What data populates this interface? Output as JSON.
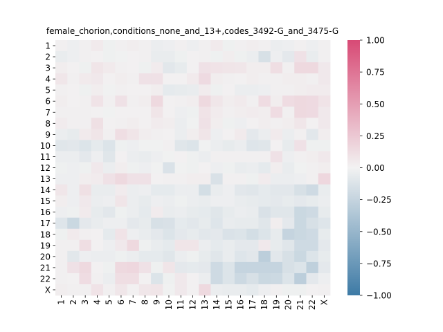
{
  "chart_data": {
    "type": "heatmap",
    "title": "female_chorion,conditions_none_and_13+,codes_3492-G_and_3475-G",
    "xlabel": "",
    "ylabel": "",
    "rows": [
      "1",
      "2",
      "3",
      "4",
      "5",
      "6",
      "7",
      "8",
      "9",
      "10",
      "11",
      "12",
      "13",
      "14",
      "15",
      "16",
      "17",
      "18",
      "19",
      "20",
      "21",
      "22",
      "X"
    ],
    "columns": [
      "1",
      "2",
      "3",
      "4",
      "5",
      "6",
      "7",
      "8",
      "9",
      "10",
      "11",
      "12",
      "13",
      "14",
      "15",
      "16",
      "17",
      "18",
      "19",
      "20",
      "21",
      "22",
      "X"
    ],
    "colorbar": {
      "vmin": -1.0,
      "vmax": 1.0,
      "ticks": [
        "1.00",
        "0.75",
        "0.50",
        "0.25",
        "0.00",
        "−0.25",
        "−0.50",
        "−0.75",
        "−1.00"
      ],
      "colors": {
        "negative": "#3d7aa5",
        "zero": "#f2f2f2",
        "positive": "#d84a75"
      }
    },
    "values": [
      [
        0.02,
        -0.03,
        0.02,
        0.05,
        -0.02,
        0.02,
        0.03,
        0.02,
        -0.04,
        -0.03,
        0.02,
        -0.03,
        0.02,
        0.05,
        -0.02,
        0.02,
        0.03,
        0.02,
        -0.04,
        -0.03,
        0.02,
        -0.03,
        0.02
      ],
      [
        -0.05,
        -0.03,
        0.02,
        0.01,
        -0.02,
        -0.01,
        0.01,
        0.02,
        -0.05,
        -0.05,
        -0.02,
        0.01,
        0.02,
        -0.02,
        0.03,
        -0.02,
        -0.04,
        -0.15,
        -0.03,
        -0.08,
        0.1,
        -0.05,
        0.02
      ],
      [
        0.03,
        0.01,
        -0.02,
        0.08,
        0.05,
        0.02,
        0.01,
        -0.02,
        0.04,
        -0.09,
        -0.06,
        0.01,
        0.1,
        0.09,
        0.08,
        0.07,
        0.03,
        0.03,
        0.12,
        0.02,
        0.15,
        0.15,
        0.06
      ],
      [
        0.07,
        0.02,
        0.05,
        0.06,
        0.01,
        0.03,
        0.02,
        0.1,
        0.1,
        0.01,
        0.01,
        0.05,
        0.14,
        0.03,
        0.02,
        0.01,
        0.03,
        0.02,
        0.02,
        0.03,
        0.03,
        0.02,
        0.06
      ],
      [
        0.02,
        0.01,
        -0.02,
        0.03,
        -0.01,
        0.02,
        0.01,
        0.01,
        0.03,
        -0.07,
        -0.06,
        -0.05,
        0.04,
        -0.02,
        0.01,
        -0.04,
        -0.04,
        -0.03,
        0.02,
        0.02,
        0.03,
        0.04,
        0.04
      ],
      [
        0.03,
        0.01,
        0.02,
        0.09,
        0.02,
        0.1,
        0.02,
        0.03,
        0.15,
        0.01,
        0.02,
        0.03,
        0.15,
        0.07,
        0.03,
        0.05,
        0.02,
        0.13,
        0.03,
        0.13,
        0.15,
        0.14,
        0.09
      ],
      [
        0.02,
        0.02,
        0.02,
        0.01,
        -0.01,
        0.01,
        0.01,
        0.01,
        0.08,
        0.01,
        -0.03,
        -0.02,
        0.09,
        0.04,
        0.02,
        0.03,
        0.04,
        0.03,
        0.13,
        0.02,
        0.15,
        0.14,
        0.06
      ],
      [
        0.04,
        0.02,
        0.02,
        0.11,
        0.01,
        0.02,
        0.03,
        0.01,
        0.04,
        0.03,
        -0.04,
        -0.01,
        0.1,
        0.03,
        -0.02,
        -0.03,
        0.01,
        0.03,
        0.02,
        0.03,
        0.07,
        0.01,
        0.06
      ],
      [
        -0.04,
        -0.06,
        0.05,
        0.08,
        0.02,
        0.12,
        0.08,
        0.03,
        0.02,
        0.01,
        -0.04,
        0.03,
        0.08,
        -0.03,
        0.01,
        0.05,
        -0.08,
        -0.04,
        0.05,
        -0.04,
        0.02,
        -0.09,
        0.03
      ],
      [
        -0.1,
        -0.09,
        -0.12,
        -0.07,
        -0.12,
        -0.02,
        -0.03,
        -0.01,
        -0.01,
        0.02,
        -0.1,
        -0.12,
        -0.01,
        -0.04,
        -0.06,
        -0.04,
        -0.11,
        -0.1,
        0.01,
        -0.06,
        0.1,
        -0.02,
        -0.02
      ],
      [
        -0.04,
        -0.04,
        -0.08,
        -0.03,
        -0.1,
        0.01,
        -0.04,
        -0.05,
        -0.03,
        -0.01,
        0.01,
        -0.02,
        -0.04,
        0.02,
        0.02,
        0.02,
        0.02,
        0.02,
        0.1,
        -0.03,
        0.02,
        0.03,
        0.06
      ],
      [
        -0.02,
        -0.03,
        -0.02,
        0.06,
        -0.04,
        0.03,
        -0.02,
        -0.03,
        -0.01,
        -0.13,
        -0.01,
        -0.02,
        0.01,
        -0.03,
        -0.02,
        -0.05,
        -0.04,
        -0.07,
        0.03,
        -0.05,
        -0.01,
        0.02,
        0.03
      ],
      [
        -0.03,
        -0.03,
        0.03,
        0.04,
        0.1,
        0.15,
        0.1,
        0.1,
        0.01,
        0.02,
        0.02,
        0.03,
        0.03,
        -0.14,
        0.02,
        0.02,
        -0.02,
        0.04,
        -0.04,
        -0.04,
        -0.03,
        0.02,
        0.16
      ],
      [
        0.07,
        -0.03,
        0.11,
        -0.05,
        -0.05,
        0.04,
        -0.04,
        -0.03,
        -0.07,
        -0.07,
        -0.04,
        -0.04,
        -0.17,
        -0.05,
        -0.03,
        -0.09,
        -0.1,
        -0.07,
        -0.09,
        -0.09,
        -0.15,
        -0.2,
        -0.05
      ],
      [
        0.03,
        -0.03,
        0.06,
        -0.04,
        -0.03,
        0.08,
        -0.04,
        -0.06,
        -0.03,
        -0.04,
        -0.02,
        -0.04,
        -0.05,
        -0.03,
        -0.03,
        -0.05,
        -0.06,
        -0.07,
        -0.08,
        -0.06,
        -0.08,
        -0.06,
        -0.04
      ],
      [
        -0.03,
        -0.02,
        0.05,
        -0.06,
        -0.09,
        -0.02,
        -0.04,
        -0.07,
        0.04,
        -0.05,
        -0.04,
        -0.06,
        -0.07,
        -0.1,
        -0.06,
        -0.04,
        -0.05,
        -0.14,
        -0.1,
        -0.1,
        -0.22,
        -0.2,
        -0.06
      ],
      [
        -0.11,
        -0.22,
        -0.08,
        -0.05,
        -0.03,
        -0.03,
        -0.08,
        -0.06,
        -0.15,
        -0.14,
        -0.07,
        -0.09,
        -0.06,
        -0.11,
        -0.05,
        -0.06,
        -0.06,
        -0.1,
        0.03,
        -0.08,
        -0.22,
        -0.15,
        -0.11
      ],
      [
        -0.02,
        0.05,
        0.02,
        0.01,
        -0.07,
        0.09,
        -0.03,
        -0.05,
        -0.08,
        -0.12,
        -0.08,
        -0.06,
        -0.09,
        -0.08,
        -0.13,
        -0.12,
        -0.17,
        -0.12,
        -0.06,
        -0.25,
        -0.22,
        -0.2,
        -0.06
      ],
      [
        0.02,
        0.02,
        0.12,
        0.01,
        -0.03,
        0.06,
        0.15,
        -0.02,
        -0.05,
        -0.07,
        0.08,
        0.08,
        -0.04,
        -0.07,
        -0.05,
        -0.08,
        -0.08,
        0.06,
        -0.06,
        -0.1,
        -0.2,
        -0.2,
        -0.08
      ],
      [
        0.02,
        -0.09,
        -0.03,
        -0.04,
        -0.04,
        -0.02,
        -0.04,
        -0.07,
        -0.07,
        -0.1,
        -0.04,
        -0.02,
        -0.06,
        -0.1,
        -0.05,
        -0.11,
        -0.09,
        -0.3,
        -0.09,
        -0.15,
        -0.22,
        -0.12,
        -0.06
      ],
      [
        0.02,
        0.1,
        0.15,
        0.01,
        -0.02,
        0.15,
        0.16,
        0.1,
        -0.02,
        0.08,
        -0.08,
        -0.07,
        -0.08,
        -0.2,
        -0.12,
        -0.25,
        -0.25,
        -0.25,
        -0.25,
        -0.15,
        -0.12,
        -0.28,
        -0.08
      ],
      [
        0.02,
        0.01,
        0.13,
        0.02,
        -0.04,
        0.12,
        0.12,
        0.01,
        -0.12,
        -0.02,
        0.06,
        0.01,
        -0.04,
        -0.2,
        -0.12,
        -0.21,
        -0.15,
        -0.22,
        -0.21,
        -0.12,
        -0.3,
        -0.08,
        -0.03
      ],
      [
        0.03,
        0.02,
        0.02,
        0.09,
        0.02,
        0.07,
        0.01,
        0.07,
        0.08,
        -0.01,
        0.06,
        0.01,
        0.15,
        -0.04,
        -0.05,
        -0.05,
        -0.07,
        -0.03,
        0.02,
        -0.02,
        -0.02,
        0.01,
        0.02
      ]
    ]
  }
}
